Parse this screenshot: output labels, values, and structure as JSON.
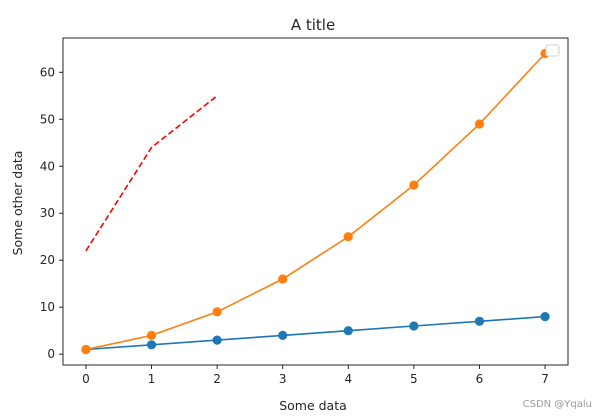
{
  "chart_data": {
    "type": "line",
    "title": "A title",
    "xlabel": "Some data",
    "ylabel": "Some other data",
    "xlim": [
      -0.35,
      7.35
    ],
    "ylim": [
      -2.3,
      67.3
    ],
    "xticks": [
      0,
      1,
      2,
      3,
      4,
      5,
      6,
      7
    ],
    "yticks": [
      0,
      10,
      20,
      30,
      40,
      50,
      60
    ],
    "grid": false,
    "legend": {
      "location": "top-right",
      "entries": []
    },
    "series": [
      {
        "x": [
          0,
          1,
          2,
          3,
          4,
          5,
          6,
          7
        ],
        "y": [
          1,
          2,
          3,
          4,
          5,
          6,
          7,
          8
        ],
        "color": "#1f77b4",
        "line_style": "solid",
        "marker": "circle"
      },
      {
        "x": [
          0,
          1,
          2,
          3,
          4,
          5,
          6,
          7
        ],
        "y": [
          1,
          4,
          9,
          16,
          25,
          36,
          49,
          64
        ],
        "color": "#ff7f0e",
        "line_style": "solid",
        "marker": "circle"
      },
      {
        "x": [
          0,
          1,
          2
        ],
        "y": [
          22,
          44,
          55
        ],
        "color": "#ff0000",
        "line_style": "dashed",
        "marker": "none"
      }
    ]
  },
  "watermark": "CSDN @Yqalu"
}
